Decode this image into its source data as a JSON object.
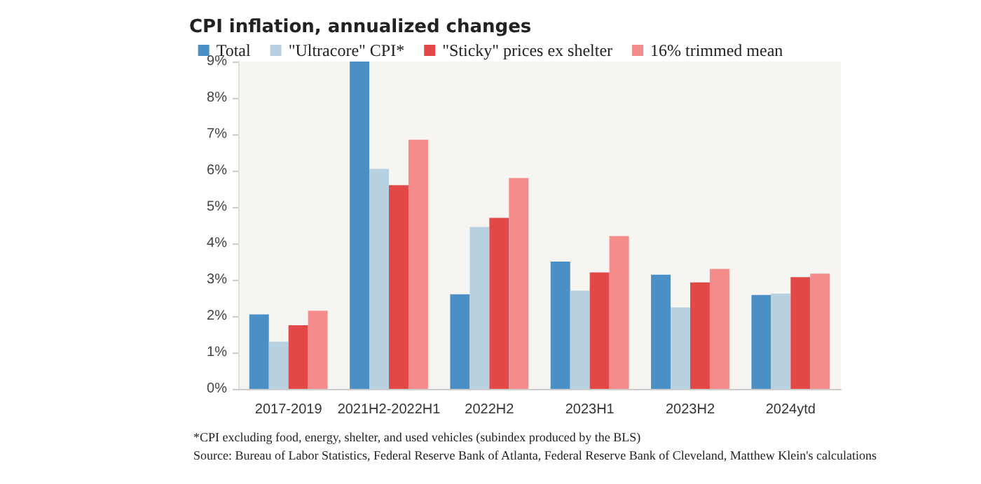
{
  "chart_data": {
    "type": "bar",
    "title": "CPI inflation, annualized changes",
    "categories": [
      "2017-2019",
      "2021H2-2022H1",
      "2022H2",
      "2023H1",
      "2023H2",
      "2024ytd"
    ],
    "series": [
      {
        "name": "Total",
        "color": "#4a8fc6",
        "values": [
          2.05,
          9.0,
          2.6,
          3.5,
          3.14,
          2.58
        ]
      },
      {
        "name": "\"Ultracore\" CPI*",
        "color": "#b8d1e0",
        "values": [
          1.3,
          6.05,
          4.45,
          2.7,
          2.24,
          2.62
        ]
      },
      {
        "name": "\"Sticky\" prices ex shelter",
        "color": "#e34848",
        "values": [
          1.75,
          5.6,
          4.7,
          3.2,
          2.93,
          3.07
        ]
      },
      {
        "name": "16% trimmed mean",
        "color": "#f58c8c",
        "values": [
          2.15,
          6.85,
          5.8,
          4.2,
          3.3,
          3.17
        ]
      }
    ],
    "ylim": [
      0,
      9
    ],
    "yticks": [
      {
        "value": 0,
        "label": "0%"
      },
      {
        "value": 1,
        "label": "1%"
      },
      {
        "value": 2,
        "label": "2%"
      },
      {
        "value": 3,
        "label": "3%"
      },
      {
        "value": 4,
        "label": "4%"
      },
      {
        "value": 5,
        "label": "5%"
      },
      {
        "value": 6,
        "label": "6%"
      },
      {
        "value": 7,
        "label": "7%"
      },
      {
        "value": 8,
        "label": "8%"
      },
      {
        "value": 9,
        "label": "9%"
      }
    ],
    "grid": false,
    "legend": "top",
    "annotations": [
      "*CPI excluding food, energy, shelter, and used vehicles (subindex produced by the BLS)",
      "Source: Bureau of Labor Statistics, Federal Reserve Bank of Atlanta, Federal Reserve Bank of Cleveland, Matthew Klein's calculations"
    ]
  }
}
